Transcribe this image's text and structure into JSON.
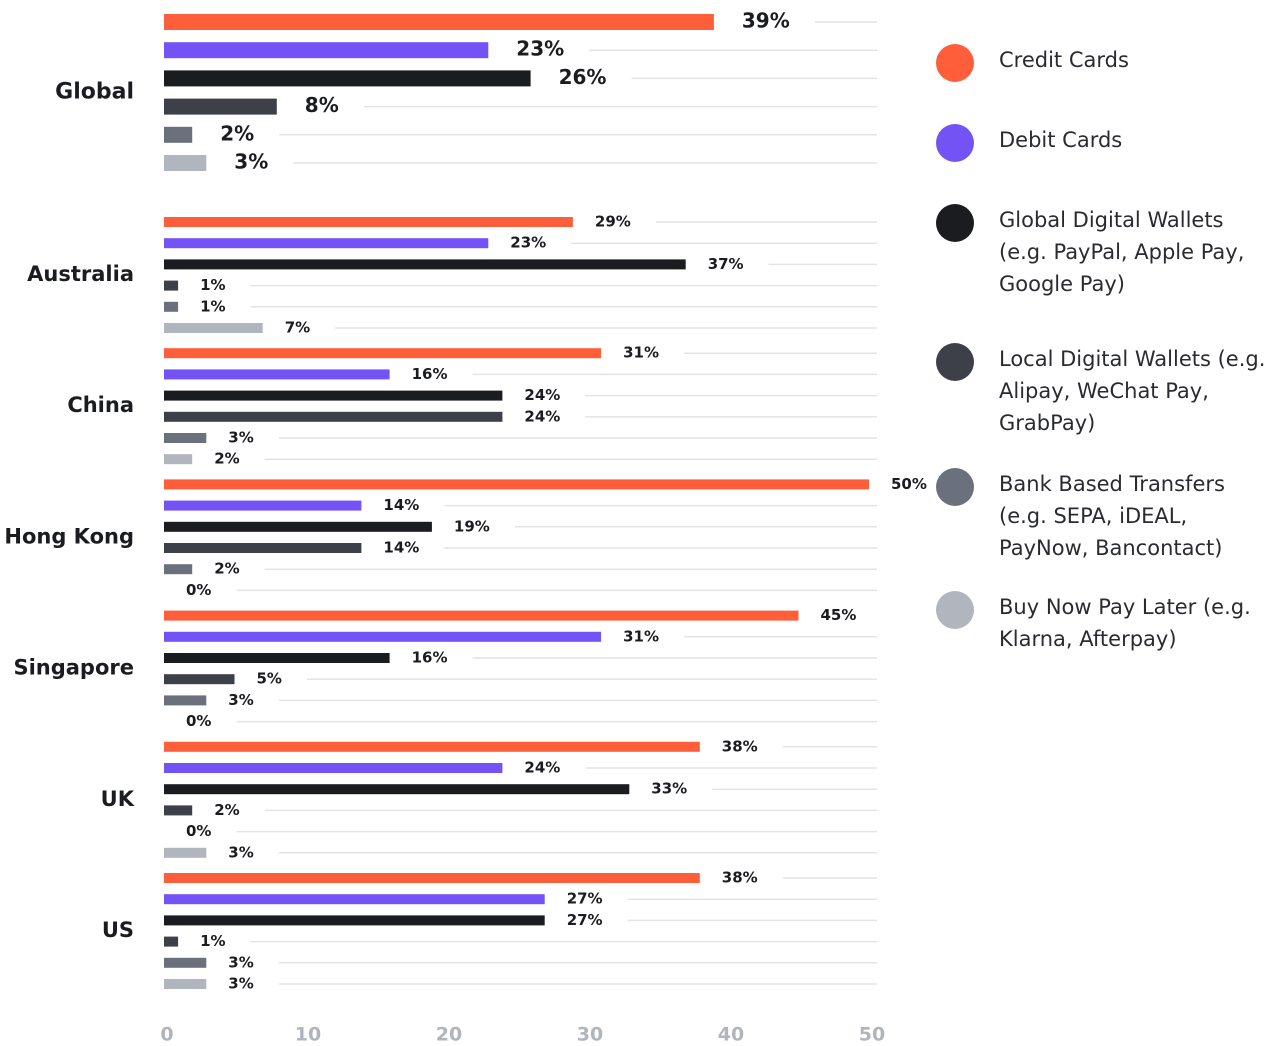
{
  "chart_data": {
    "type": "bar",
    "orientation": "horizontal",
    "categories": [
      "Global",
      "Australia",
      "China",
      "Hong Kong",
      "Singapore",
      "UK",
      "US"
    ],
    "series": [
      {
        "name": "Credit Cards",
        "color": "#ff5e3a",
        "values": [
          39,
          29,
          31,
          50,
          45,
          38,
          38
        ],
        "value_labels": [
          "39%",
          "29%",
          "31%",
          "50%",
          "45%",
          "38%",
          "38%"
        ]
      },
      {
        "name": "Debit Cards",
        "color": "#7353f5",
        "values": [
          23,
          23,
          16,
          14,
          31,
          24,
          27
        ],
        "value_labels": [
          "23%",
          "23%",
          "16%",
          "14%",
          "31%",
          "24%",
          "27%"
        ]
      },
      {
        "name": "Global Digital Wallets (e.g. PayPal, Apple Pay, Google Pay)",
        "color": "#1b1c20",
        "values": [
          26,
          37,
          24,
          19,
          16,
          33,
          27
        ],
        "value_labels": [
          "26%",
          "37%",
          "24%",
          "19%",
          "16%",
          "33%",
          "27%"
        ]
      },
      {
        "name": "Local Digital Wallets (e.g. Alipay, WeChat Pay, GrabPay)",
        "color": "#3d4048",
        "values": [
          8,
          1,
          24,
          14,
          5,
          2,
          1
        ],
        "value_labels": [
          "8%",
          "1%",
          "24%",
          "14%",
          "5%",
          "2%",
          "1%"
        ]
      },
      {
        "name": "Bank Based Transfers (e.g. SEPA, iDEAL, PayNow, Bancontact)",
        "color": "#6b717c",
        "values": [
          2,
          1,
          3,
          2,
          3,
          0,
          3
        ],
        "value_labels": [
          "2%",
          "1%",
          "3%",
          "2%",
          "3%",
          "0%",
          "3%"
        ]
      },
      {
        "name": "Buy Now Pay Later (e.g. Klarna, Afterpay)",
        "color": "#b1b5bd",
        "values": [
          3,
          7,
          2,
          0,
          0,
          3,
          3
        ],
        "value_labels": [
          "3%",
          "7%",
          "2%",
          "0%",
          "0%",
          "3%",
          "3%"
        ]
      }
    ],
    "xlim": [
      0,
      50
    ],
    "xticks": [
      0,
      10,
      20,
      30,
      40,
      50
    ],
    "legend": "right"
  }
}
